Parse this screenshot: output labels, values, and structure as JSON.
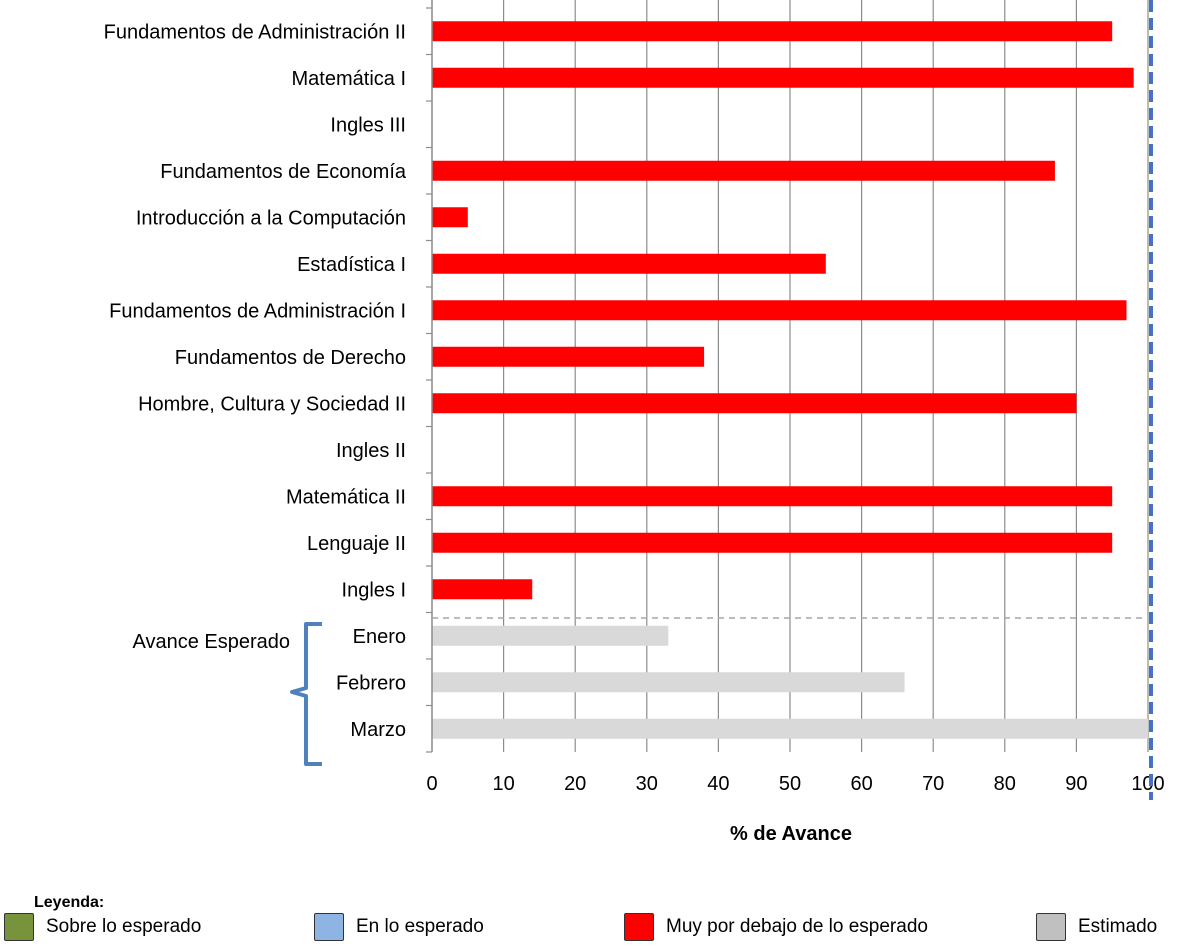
{
  "chart_data": {
    "type": "bar",
    "orientation": "horizontal",
    "categories": [
      "Fundamentos de Administración II",
      "Matemática I",
      "Ingles III",
      "Fundamentos de Economía",
      "Introducción a la Computación",
      "Estadística I",
      "Fundamentos de Administración I",
      "Fundamentos de Derecho",
      "Hombre, Cultura y Sociedad II",
      "Ingles II",
      "Matemática II",
      "Lenguaje II",
      "Ingles I"
    ],
    "values": [
      95,
      98,
      0,
      87,
      5,
      55,
      97,
      38,
      90,
      0,
      95,
      95,
      14
    ],
    "bar_color": "#ff0000",
    "expected": {
      "group_label": "Avance Esperado",
      "categories": [
        "Enero",
        "Febrero",
        "Marzo"
      ],
      "values": [
        33,
        66,
        100
      ],
      "bar_color": "#d9d9d9"
    },
    "xlabel": "% de Avance",
    "xlim": [
      0,
      100
    ],
    "xticks": [
      0,
      10,
      20,
      30,
      40,
      50,
      60,
      70,
      80,
      90,
      100
    ],
    "grid": "vertical",
    "reference_line": {
      "x": 100,
      "style": "dashed",
      "color": "#4472c4"
    }
  },
  "legend": {
    "title": "Leyenda:",
    "items": [
      {
        "label": "Sobre lo esperado",
        "color": "#77933c"
      },
      {
        "label": "En lo esperado",
        "color": "#8db4e2"
      },
      {
        "label": "Muy por debajo de lo esperado",
        "color": "#ff0000"
      },
      {
        "label": "Estimado",
        "color": "#c0c0c0"
      }
    ]
  }
}
